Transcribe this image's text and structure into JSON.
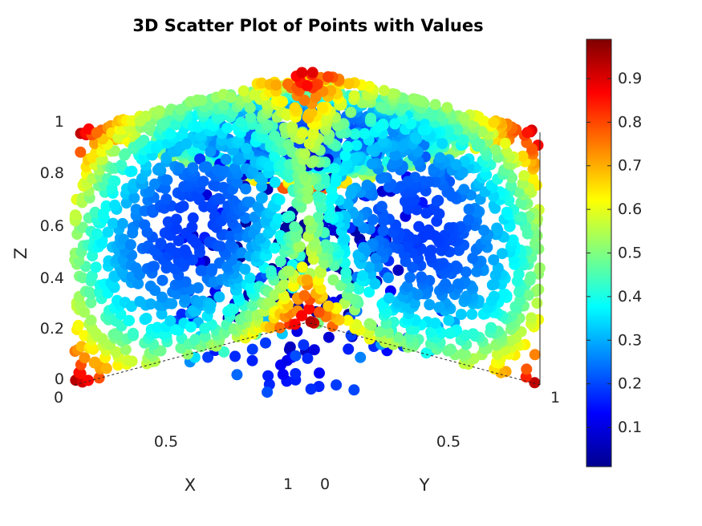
{
  "chart_data": {
    "type": "scatter",
    "dimensions": 3,
    "title": "3D Scatter Plot of Points with Values",
    "xlabel": "X",
    "ylabel": "Y",
    "zlabel": "Z",
    "xlim": [
      0,
      1
    ],
    "ylim": [
      0,
      1
    ],
    "zlim": [
      0,
      1
    ],
    "x_ticks": [
      "0",
      "0.5",
      "1"
    ],
    "y_ticks": [
      "0",
      "0.5",
      "1"
    ],
    "z_ticks": [
      "0",
      "0.2",
      "0.4",
      "0.6",
      "0.8",
      "1"
    ],
    "view": "isometric, looking from (1,1,1) toward the origin",
    "colormap": "jet",
    "colorbar": {
      "location": "right",
      "range": [
        0.01,
        0.99
      ],
      "ticks": [
        "0.1",
        "0.2",
        "0.3",
        "0.4",
        "0.5",
        "0.6",
        "0.7",
        "0.8",
        "0.9"
      ]
    },
    "grid": false,
    "surfaces_sampled": [
      "x=1",
      "y=1",
      "z=1"
    ],
    "value_pattern": "value ≈ 1 near the corners of the cube, ≈ 0 near the mid-points of the edges and the centre of the cube, intermediate elsewhere"
  }
}
